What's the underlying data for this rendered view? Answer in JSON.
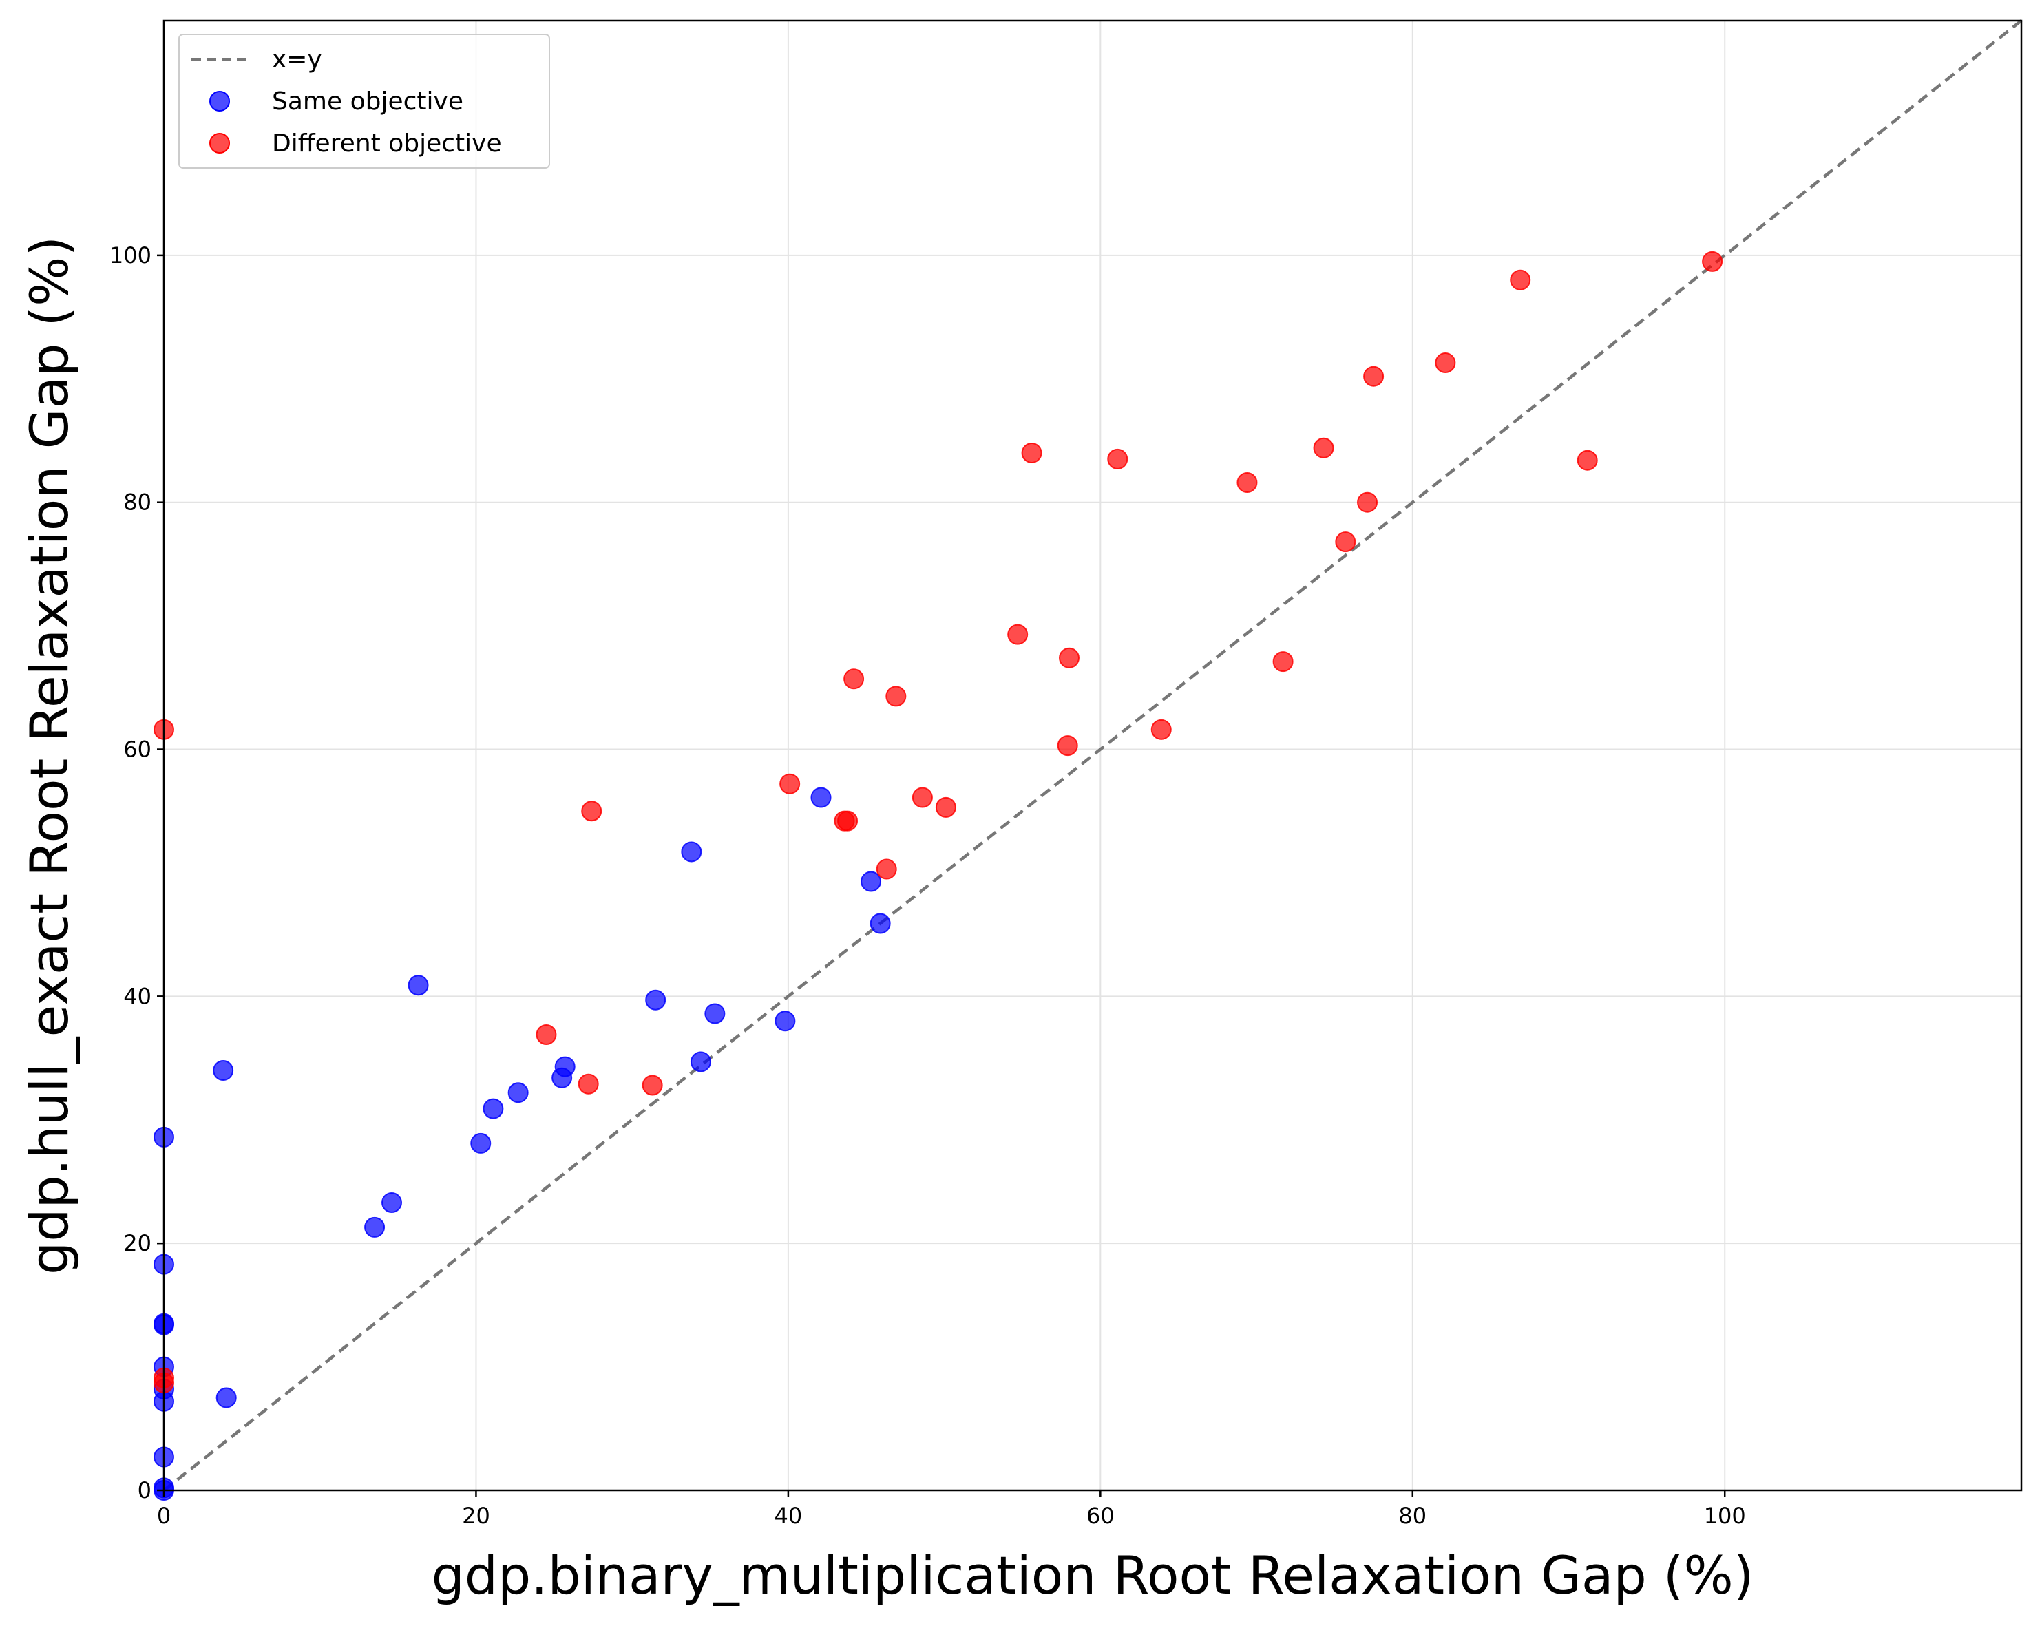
{
  "chart_data": {
    "type": "scatter",
    "xlabel": "gdp.binary_multiplication Root Relaxation Gap (%)",
    "ylabel": "gdp.hull_exact Root Relaxation Gap (%)",
    "xlim": [
      0,
      119
    ],
    "ylim": [
      0,
      119
    ],
    "x_ticks": [
      0,
      20,
      40,
      60,
      80,
      100
    ],
    "y_ticks": [
      0,
      20,
      40,
      60,
      80,
      100
    ],
    "x_tick_labels": [
      "0",
      "20",
      "40",
      "60",
      "80",
      "100"
    ],
    "y_tick_labels": [
      "0",
      "20",
      "40",
      "60",
      "80",
      "100"
    ],
    "grid": true,
    "legend_position": "top-left",
    "reference_line": {
      "label": "x=y",
      "style": "dashed",
      "color": "#777777"
    },
    "series": [
      {
        "name": "Same objective",
        "color": "#0000ff",
        "points": [
          [
            0,
            0
          ],
          [
            0,
            0.2
          ],
          [
            0,
            2.7
          ],
          [
            0,
            7.2
          ],
          [
            0,
            8.2
          ],
          [
            0,
            10.0
          ],
          [
            0,
            13.4
          ],
          [
            0,
            13.5
          ],
          [
            0,
            18.3
          ],
          [
            0,
            28.6
          ],
          [
            4.0,
            7.5
          ],
          [
            3.8,
            34.0
          ],
          [
            13.5,
            21.3
          ],
          [
            14.6,
            23.3
          ],
          [
            16.3,
            40.9
          ],
          [
            20.3,
            28.1
          ],
          [
            21.1,
            30.9
          ],
          [
            22.7,
            32.2
          ],
          [
            25.5,
            33.4
          ],
          [
            25.7,
            34.3
          ],
          [
            31.5,
            39.7
          ],
          [
            33.8,
            51.7
          ],
          [
            34.4,
            34.7
          ],
          [
            35.3,
            38.6
          ],
          [
            39.8,
            38.0
          ],
          [
            42.1,
            56.1
          ],
          [
            45.3,
            49.3
          ],
          [
            45.9,
            45.9
          ]
        ]
      },
      {
        "name": "Different objective",
        "color": "#ff0000",
        "points": [
          [
            0,
            61.6
          ],
          [
            0,
            8.7
          ],
          [
            0,
            9.1
          ],
          [
            24.5,
            36.9
          ],
          [
            27.2,
            32.9
          ],
          [
            27.4,
            55.0
          ],
          [
            31.3,
            32.8
          ],
          [
            40.1,
            57.2
          ],
          [
            43.6,
            54.2
          ],
          [
            43.8,
            54.2
          ],
          [
            44.2,
            65.7
          ],
          [
            46.3,
            50.3
          ],
          [
            46.9,
            64.3
          ],
          [
            48.6,
            56.1
          ],
          [
            50.1,
            55.3
          ],
          [
            54.7,
            69.3
          ],
          [
            55.6,
            84.0
          ],
          [
            57.9,
            60.3
          ],
          [
            58.0,
            67.4
          ],
          [
            61.1,
            83.5
          ],
          [
            63.9,
            61.6
          ],
          [
            69.4,
            81.6
          ],
          [
            71.7,
            67.1
          ],
          [
            74.3,
            84.4
          ],
          [
            75.7,
            76.8
          ],
          [
            77.1,
            80.0
          ],
          [
            77.5,
            90.2
          ],
          [
            82.1,
            91.3
          ],
          [
            86.9,
            98.0
          ],
          [
            91.2,
            83.4
          ],
          [
            99.2,
            99.5
          ]
        ]
      }
    ]
  }
}
